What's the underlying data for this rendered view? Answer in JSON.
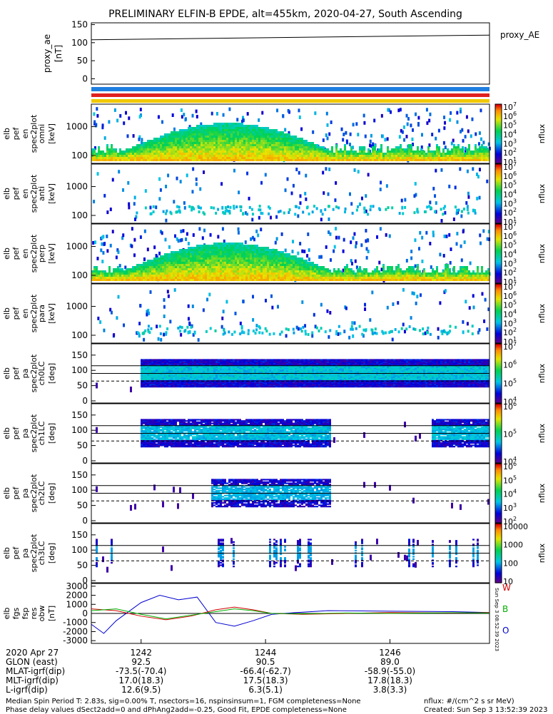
{
  "title": "PRELIMINARY ELFIN-B EPDE, alt=455km, 2020-04-27, South Ascending",
  "chart_data": {
    "type": "heatmap",
    "panels": [
      {
        "ylabel": [
          "proxy_ae",
          "[nT]"
        ],
        "yticks": [
          "150",
          "100",
          "50",
          "0"
        ],
        "ylim": [
          -15,
          155
        ],
        "right_label": "proxy_AE",
        "series_line": {
          "x": [
            1241.2,
            1247.6
          ],
          "y": [
            108,
            121
          ]
        }
      },
      {
        "ylabel": [
          "elb",
          "pef",
          "en",
          "spec2plot",
          "omni",
          "[keV]"
        ],
        "yticks": [
          "1000",
          "100"
        ],
        "colorbar": {
          "ticks": [
            "10^7",
            "10^6",
            "10^5",
            "10^4",
            "10^3",
            "10^2",
            "10^1"
          ],
          "label": "nflux"
        }
      },
      {
        "ylabel": [
          "elb",
          "pef",
          "en",
          "spec2plot",
          "anti",
          "[keV]"
        ],
        "yticks": [
          "1000",
          "100"
        ],
        "colorbar": {
          "ticks": [
            "10^7",
            "10^6",
            "10^5",
            "10^4",
            "10^3",
            "10^2",
            "10^1"
          ],
          "label": "nflux"
        }
      },
      {
        "ylabel": [
          "elb",
          "pef",
          "en",
          "spec2plot",
          "perp",
          "[keV]"
        ],
        "yticks": [
          "1000",
          "100"
        ],
        "colorbar": {
          "ticks": [
            "10^7",
            "10^6",
            "10^5",
            "10^4",
            "10^3",
            "10^2",
            "10^1"
          ],
          "label": "nflux"
        }
      },
      {
        "ylabel": [
          "elb",
          "pef",
          "en",
          "spec2plot",
          "para",
          "[keV]"
        ],
        "yticks": [
          "1000",
          "100"
        ],
        "colorbar": {
          "ticks": [
            "10^7",
            "10^6",
            "10^5",
            "10^4",
            "10^3",
            "10^2",
            "10^1"
          ],
          "label": "nflux"
        }
      },
      {
        "ylabel": [
          "elb",
          "pef",
          "pa",
          "spec2plot",
          "ch0LC",
          "[deg]"
        ],
        "yticks": [
          "150",
          "100",
          "50",
          "0"
        ],
        "colorbar": {
          "ticks": [
            "10^7",
            "10^6",
            "10^5",
            "10^4"
          ],
          "label": "nflux"
        }
      },
      {
        "ylabel": [
          "elb",
          "pef",
          "pa",
          "spec2plot",
          "ch1LC",
          "[deg]"
        ],
        "yticks": [
          "150",
          "100",
          "50",
          "0"
        ],
        "colorbar": {
          "ticks": [
            "10^6",
            "10^5",
            "10^4"
          ],
          "label": "nflux"
        }
      },
      {
        "ylabel": [
          "elb",
          "pef",
          "pa",
          "spec2plot",
          "ch2LC",
          "[deg]"
        ],
        "yticks": [
          "150",
          "100",
          "50",
          "0"
        ],
        "colorbar": {
          "ticks": [
            "10^6",
            "10^5",
            "10^4",
            "10^3",
            "10^2"
          ],
          "label": "nflux"
        }
      },
      {
        "ylabel": [
          "elb",
          "pef",
          "pa",
          "spec2plot",
          "ch3LC",
          "[deg]"
        ],
        "yticks": [
          "150",
          "100",
          "50",
          "0"
        ],
        "colorbar": {
          "ticks": [
            "10000",
            "1000",
            "100",
            "10"
          ],
          "label": "nflux"
        }
      },
      {
        "ylabel": [
          "elb",
          "fgs",
          "fsp",
          "res",
          "obw",
          "[nT]"
        ],
        "yticks": [
          "3000",
          "2000",
          "1000",
          "0",
          "-1000",
          "-2000",
          "-3000"
        ],
        "ylim": [
          -3300,
          3300
        ],
        "legend": [
          "W",
          "B",
          "O"
        ],
        "legend_colors": [
          "#d00000",
          "#00b000",
          "#0000d0"
        ],
        "side_stamp": "Sun Sep 3 08:52:39 2023"
      }
    ],
    "x_ticks": [
      "1242",
      "1244",
      "1246"
    ],
    "x_tick_values": [
      1242,
      1244,
      1246
    ],
    "x_range": [
      1241.2,
      1247.6
    ]
  },
  "footer_rows": [
    {
      "label": "2020 Apr 27",
      "values": [
        "1242",
        "1244",
        "1246"
      ]
    },
    {
      "label": "GLON (east)",
      "values": [
        "92.5",
        "90.5",
        "89.0"
      ]
    },
    {
      "label": "MLAT-igrf(dip)",
      "values": [
        "-73.5(-70.4)",
        "-66.4(-62.7)",
        "-58.9(-55.0)"
      ]
    },
    {
      "label": "MLT-igrf(dip)",
      "values": [
        "17.0(18.3)",
        "17.5(18.3)",
        "17.8(18.3)"
      ]
    },
    {
      "label": "L-igrf(dip)",
      "values": [
        "12.6(9.5)",
        "6.3(5.1)",
        "3.8(3.3)"
      ]
    }
  ],
  "notes": {
    "line1": "Median Spin Period T: 2.83s, sig=0.00% T, nsectors=16, nspinsinsum=1, FGM completeness=None",
    "line2": "Phase delay values dSect2add=0 and dPhAng2add=-0.25, Good Fit, EPDE completeness=None",
    "units": "nflux: #/(cm^2 s sr MeV)",
    "created": "Created: Sun Sep  3 13:52:39 2023"
  }
}
